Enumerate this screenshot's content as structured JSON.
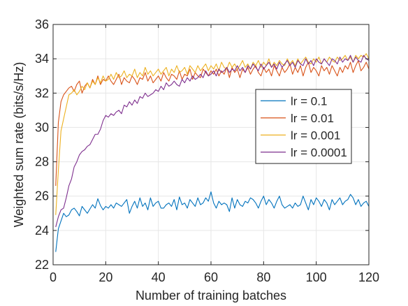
{
  "chart_data": {
    "type": "line",
    "xlabel": "Number of training batches",
    "ylabel": "Weighted sum rate (bits/s/Hz)",
    "xlim": [
      0,
      120
    ],
    "ylim": [
      22,
      36
    ],
    "xticks": [
      "0",
      "20",
      "40",
      "60",
      "80",
      "100",
      "120"
    ],
    "yticks": [
      "22",
      "24",
      "26",
      "28",
      "30",
      "32",
      "34",
      "36"
    ],
    "grid": true,
    "legend_position": "right-middle",
    "x": [
      1,
      2,
      3,
      4,
      5,
      6,
      7,
      8,
      9,
      10,
      11,
      12,
      13,
      14,
      15,
      16,
      17,
      18,
      19,
      20,
      21,
      22,
      23,
      24,
      25,
      26,
      27,
      28,
      29,
      30,
      31,
      32,
      33,
      34,
      35,
      36,
      37,
      38,
      39,
      40,
      41,
      42,
      43,
      44,
      45,
      46,
      47,
      48,
      49,
      50,
      51,
      52,
      53,
      54,
      55,
      56,
      57,
      58,
      59,
      60,
      61,
      62,
      63,
      64,
      65,
      66,
      67,
      68,
      69,
      70,
      71,
      72,
      73,
      74,
      75,
      76,
      77,
      78,
      79,
      80,
      81,
      82,
      83,
      84,
      85,
      86,
      87,
      88,
      89,
      90,
      91,
      92,
      93,
      94,
      95,
      96,
      97,
      98,
      99,
      100,
      101,
      102,
      103,
      104,
      105,
      106,
      107,
      108,
      109,
      110,
      111,
      112,
      113,
      114,
      115,
      116,
      117,
      118,
      119,
      120
    ],
    "series": [
      {
        "name": "lr = 0.1",
        "color": "#0072BD",
        "values": [
          22.75,
          24.1,
          24.55,
          25.0,
          24.8,
          24.9,
          25.2,
          25.3,
          25.1,
          24.85,
          25.4,
          25.2,
          25.0,
          25.25,
          25.5,
          25.3,
          25.85,
          25.45,
          25.2,
          25.4,
          25.3,
          25.5,
          25.3,
          25.6,
          25.5,
          25.4,
          25.6,
          25.8,
          25.0,
          25.4,
          25.7,
          25.3,
          25.9,
          25.4,
          25.6,
          25.2,
          25.9,
          25.4,
          25.6,
          25.7,
          25.3,
          25.3,
          25.5,
          25.6,
          25.4,
          25.8,
          25.2,
          25.95,
          25.5,
          25.6,
          25.3,
          25.8,
          25.6,
          25.4,
          25.9,
          25.5,
          25.6,
          25.9,
          25.7,
          26.25,
          25.6,
          25.3,
          25.7,
          25.5,
          25.6,
          25.5,
          25.1,
          25.9,
          25.3,
          25.8,
          25.5,
          25.4,
          25.7,
          25.6,
          25.9,
          25.8,
          25.6,
          25.3,
          25.7,
          26.0,
          25.5,
          25.8,
          25.6,
          25.3,
          25.7,
          26.0,
          25.5,
          25.3,
          25.4,
          25.5,
          25.3,
          25.6,
          25.4,
          25.5,
          26.0,
          25.6,
          25.2,
          25.8,
          25.5,
          25.9,
          25.7,
          25.4,
          25.8,
          25.6,
          25.2,
          25.8,
          25.5,
          25.7,
          25.9,
          25.5,
          25.7,
          25.8,
          26.1,
          25.9,
          25.5,
          25.8,
          25.4,
          25.6,
          25.7,
          25.4
        ]
      },
      {
        "name": "lr = 0.01",
        "color": "#D95319",
        "values": [
          26.6,
          30.3,
          31.5,
          31.9,
          32.1,
          32.3,
          32.4,
          32.1,
          32.5,
          32.7,
          32.0,
          32.4,
          32.6,
          32.3,
          32.8,
          32.5,
          33.0,
          32.5,
          32.8,
          32.7,
          33.0,
          32.7,
          32.5,
          32.8,
          33.1,
          32.5,
          32.9,
          32.7,
          32.6,
          33.0,
          32.8,
          32.5,
          32.9,
          32.8,
          33.2,
          32.7,
          33.0,
          32.6,
          32.8,
          33.0,
          32.7,
          33.2,
          32.9,
          32.7,
          33.1,
          33.0,
          32.8,
          33.3,
          32.8,
          33.1,
          33.0,
          33.4,
          32.8,
          33.2,
          33.0,
          32.9,
          33.4,
          33.2,
          33.0,
          33.3,
          33.1,
          33.4,
          33.0,
          33.3,
          33.1,
          33.5,
          32.9,
          33.5,
          33.2,
          33.4,
          32.9,
          33.4,
          33.2,
          33.5,
          33.1,
          33.4,
          33.6,
          33.2,
          33.0,
          33.5,
          33.2,
          33.4,
          33.0,
          33.6,
          33.3,
          33.0,
          33.5,
          33.2,
          33.4,
          33.7,
          33.1,
          33.5,
          33.2,
          33.6,
          33.0,
          33.5,
          33.8,
          33.2,
          33.5,
          33.3,
          33.0,
          33.6,
          33.3,
          33.5,
          33.1,
          33.6,
          33.3,
          33.0,
          33.5,
          33.2,
          33.6,
          33.4,
          33.8,
          33.2,
          33.6,
          33.9,
          33.3,
          33.5,
          33.8,
          33.4
        ]
      },
      {
        "name": "lr = 0.001",
        "color": "#EDB120",
        "values": [
          24.9,
          27.5,
          29.8,
          30.5,
          31.2,
          31.9,
          32.0,
          32.2,
          31.9,
          32.1,
          32.4,
          32.2,
          32.6,
          32.3,
          32.7,
          32.5,
          32.9,
          32.6,
          33.0,
          32.7,
          32.8,
          33.1,
          32.8,
          33.2,
          32.9,
          33.0,
          33.3,
          32.9,
          33.1,
          33.0,
          33.4,
          32.9,
          33.2,
          33.0,
          33.5,
          33.1,
          33.3,
          33.0,
          33.2,
          33.4,
          33.1,
          33.3,
          33.5,
          33.0,
          33.4,
          33.2,
          33.6,
          33.2,
          33.3,
          33.5,
          33.1,
          33.6,
          33.4,
          33.2,
          33.6,
          33.3,
          33.5,
          33.7,
          33.3,
          33.6,
          33.4,
          33.7,
          33.3,
          33.8,
          33.5,
          33.4,
          33.8,
          33.5,
          33.7,
          33.4,
          33.6,
          33.9,
          33.5,
          33.7,
          33.4,
          33.8,
          33.6,
          33.9,
          33.5,
          33.8,
          33.6,
          34.0,
          33.5,
          33.8,
          33.6,
          33.9,
          33.7,
          33.6,
          34.0,
          33.7,
          33.9,
          33.6,
          34.0,
          33.7,
          33.9,
          34.1,
          33.8,
          33.7,
          34.0,
          33.8,
          34.1,
          33.7,
          34.0,
          33.8,
          34.1,
          33.9,
          33.8,
          34.1,
          33.9,
          34.0,
          34.2,
          33.9,
          34.1,
          33.8,
          34.2,
          34.0,
          34.2,
          34.1,
          34.3,
          34.0
        ]
      },
      {
        "name": "lr = 0.0001",
        "color": "#7E2F8E",
        "values": [
          24.2,
          24.8,
          25.2,
          25.3,
          25.9,
          26.6,
          27.0,
          27.7,
          28.0,
          28.4,
          28.6,
          28.7,
          28.9,
          29.0,
          29.3,
          29.6,
          29.6,
          29.9,
          30.4,
          30.7,
          30.6,
          30.8,
          30.7,
          30.9,
          31.0,
          30.8,
          31.3,
          31.2,
          31.5,
          31.3,
          31.6,
          31.4,
          31.8,
          31.7,
          32.0,
          31.8,
          31.9,
          32.0,
          32.2,
          32.1,
          32.4,
          32.2,
          32.6,
          32.4,
          32.5,
          32.7,
          32.5,
          32.4,
          32.8,
          32.6,
          32.9,
          32.7,
          33.0,
          32.8,
          32.9,
          33.1,
          32.9,
          33.3,
          33.0,
          33.1,
          33.3,
          33.0,
          33.4,
          33.2,
          33.3,
          33.5,
          33.2,
          33.4,
          33.3,
          33.6,
          33.3,
          33.5,
          33.2,
          33.6,
          33.4,
          33.7,
          33.5,
          33.3,
          33.7,
          33.4,
          33.6,
          33.8,
          33.5,
          33.7,
          33.4,
          33.8,
          33.5,
          33.7,
          33.9,
          33.6,
          33.8,
          33.5,
          33.9,
          33.7,
          33.6,
          34.0,
          33.7,
          33.9,
          33.6,
          34.0,
          33.8,
          33.7,
          34.0,
          33.8,
          33.6,
          34.0,
          33.9,
          33.7,
          34.1,
          33.8,
          34.0,
          33.9,
          34.2,
          33.8,
          34.1,
          33.9,
          33.8,
          34.2,
          34.0,
          33.9
        ]
      }
    ]
  }
}
